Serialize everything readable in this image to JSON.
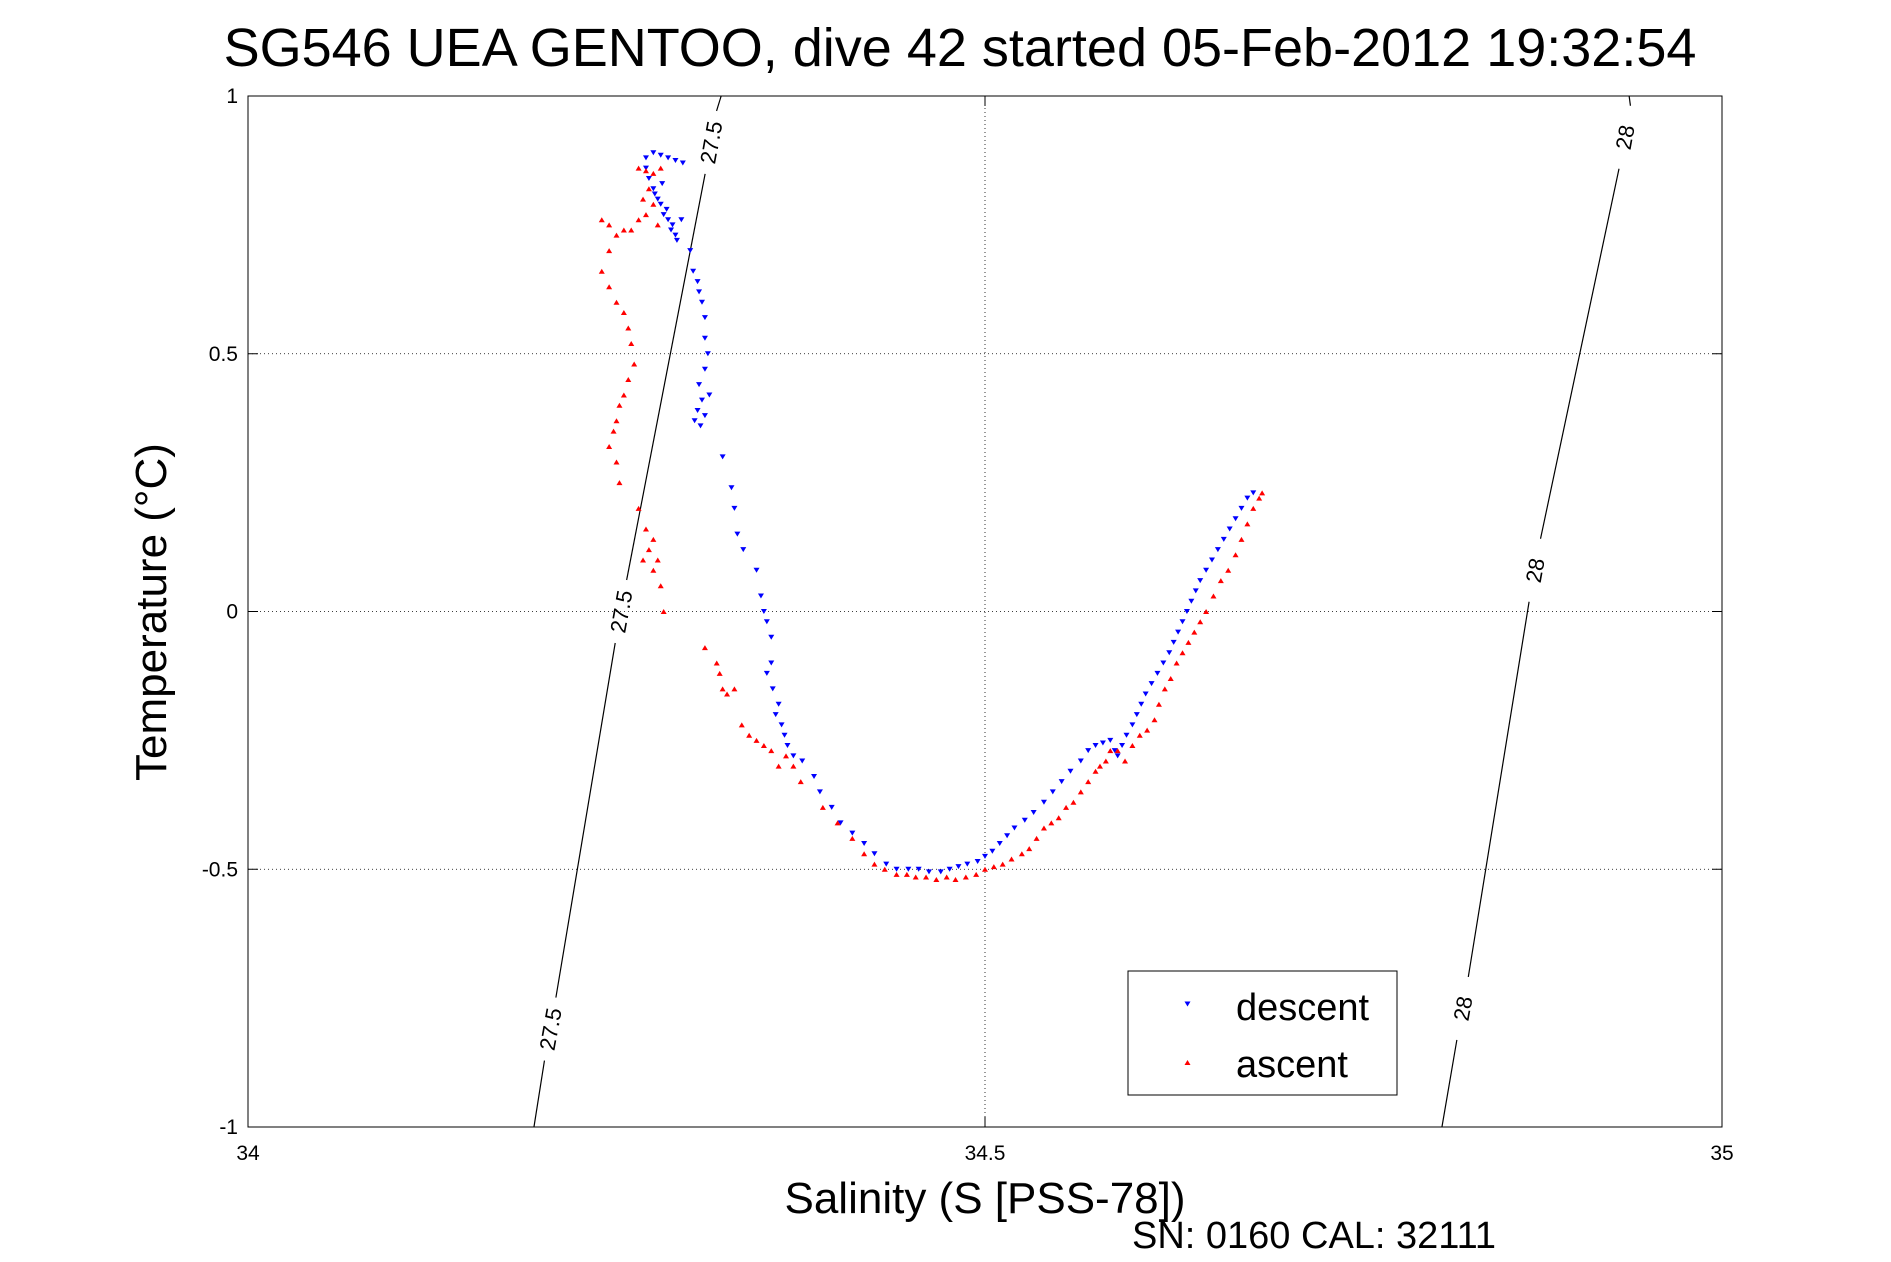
{
  "chart_data": {
    "type": "scatter",
    "title": "SG546 UEA GENTOO, dive 42 started 05-Feb-2012 19:32:54",
    "xlabel": "Salinity (S [PSS-78])",
    "ylabel": "Temperature (°C)",
    "xlim": [
      34,
      35
    ],
    "ylim": [
      -1,
      1
    ],
    "x_ticks": [
      {
        "value": 34,
        "label": "34"
      },
      {
        "value": 34.5,
        "label": "34.5"
      },
      {
        "value": 35,
        "label": "35"
      }
    ],
    "y_ticks": [
      {
        "value": -1,
        "label": "-1"
      },
      {
        "value": -0.5,
        "label": "-0.5"
      },
      {
        "value": 0,
        "label": "0"
      },
      {
        "value": 0.5,
        "label": "0.5"
      },
      {
        "value": 1,
        "label": "1"
      }
    ],
    "grid": true,
    "legend_position": "bottom-right",
    "footer": "SN: 0160  CAL: 32111",
    "density_contours": [
      {
        "label": "27.5",
        "points": [
          [
            34.194,
            -1.0
          ],
          [
            34.321,
            1.0
          ]
        ],
        "label_positions": [
          [
            34.205,
            -0.81
          ],
          [
            34.253,
            0.0
          ],
          [
            34.314,
            0.91
          ]
        ]
      },
      {
        "label": "28",
        "points": [
          [
            34.81,
            -1.0
          ],
          [
            34.937,
            1.0
          ]
        ],
        "label_positions": [
          [
            34.824,
            -0.77
          ],
          [
            34.873,
            0.08
          ],
          [
            34.934,
            0.92
          ]
        ]
      }
    ],
    "series": [
      {
        "name": "descent",
        "color": "#0000ff",
        "marker": "triangle-down",
        "points": [
          [
            34.27,
            0.88
          ],
          [
            34.275,
            0.89
          ],
          [
            34.28,
            0.885
          ],
          [
            34.285,
            0.88
          ],
          [
            34.29,
            0.875
          ],
          [
            34.295,
            0.87
          ],
          [
            34.27,
            0.86
          ],
          [
            34.272,
            0.84
          ],
          [
            34.275,
            0.82
          ],
          [
            34.278,
            0.8
          ],
          [
            34.28,
            0.79
          ],
          [
            34.282,
            0.77
          ],
          [
            34.285,
            0.76
          ],
          [
            34.287,
            0.74
          ],
          [
            34.29,
            0.73
          ],
          [
            34.276,
            0.81
          ],
          [
            34.281,
            0.83
          ],
          [
            34.284,
            0.78
          ],
          [
            34.288,
            0.75
          ],
          [
            34.291,
            0.72
          ],
          [
            34.294,
            0.76
          ],
          [
            34.3,
            0.7
          ],
          [
            34.302,
            0.66
          ],
          [
            34.305,
            0.64
          ],
          [
            34.306,
            0.62
          ],
          [
            34.308,
            0.6
          ],
          [
            34.31,
            0.57
          ],
          [
            34.31,
            0.53
          ],
          [
            34.312,
            0.5
          ],
          [
            34.31,
            0.47
          ],
          [
            34.306,
            0.44
          ],
          [
            34.308,
            0.41
          ],
          [
            34.305,
            0.39
          ],
          [
            34.303,
            0.37
          ],
          [
            34.307,
            0.36
          ],
          [
            34.31,
            0.38
          ],
          [
            34.313,
            0.42
          ],
          [
            34.322,
            0.3
          ],
          [
            34.328,
            0.24
          ],
          [
            34.33,
            0.2
          ],
          [
            34.332,
            0.15
          ],
          [
            34.336,
            0.12
          ],
          [
            34.345,
            0.08
          ],
          [
            34.348,
            0.03
          ],
          [
            34.35,
            0.0
          ],
          [
            34.352,
            -0.02
          ],
          [
            34.355,
            -0.05
          ],
          [
            34.355,
            -0.1
          ],
          [
            34.352,
            -0.12
          ],
          [
            34.356,
            -0.15
          ],
          [
            34.36,
            -0.18
          ],
          [
            34.358,
            -0.2
          ],
          [
            34.362,
            -0.22
          ],
          [
            34.364,
            -0.24
          ],
          [
            34.366,
            -0.26
          ],
          [
            34.37,
            -0.28
          ],
          [
            34.376,
            -0.29
          ],
          [
            34.384,
            -0.32
          ],
          [
            34.388,
            -0.35
          ],
          [
            34.396,
            -0.38
          ],
          [
            34.402,
            -0.41
          ],
          [
            34.41,
            -0.43
          ],
          [
            34.418,
            -0.45
          ],
          [
            34.425,
            -0.47
          ],
          [
            34.433,
            -0.49
          ],
          [
            34.44,
            -0.5
          ],
          [
            34.448,
            -0.5
          ],
          [
            34.455,
            -0.5
          ],
          [
            34.462,
            -0.505
          ],
          [
            34.47,
            -0.505
          ],
          [
            34.476,
            -0.5
          ],
          [
            34.482,
            -0.495
          ],
          [
            34.488,
            -0.49
          ],
          [
            34.495,
            -0.485
          ],
          [
            34.5,
            -0.475
          ],
          [
            34.505,
            -0.465
          ],
          [
            34.51,
            -0.45
          ],
          [
            34.515,
            -0.435
          ],
          [
            34.52,
            -0.42
          ],
          [
            34.527,
            -0.405
          ],
          [
            34.533,
            -0.39
          ],
          [
            34.54,
            -0.37
          ],
          [
            34.546,
            -0.35
          ],
          [
            34.552,
            -0.33
          ],
          [
            34.558,
            -0.31
          ],
          [
            34.565,
            -0.29
          ],
          [
            34.57,
            -0.27
          ],
          [
            34.575,
            -0.26
          ],
          [
            34.58,
            -0.255
          ],
          [
            34.585,
            -0.25
          ],
          [
            34.588,
            -0.27
          ],
          [
            34.59,
            -0.28
          ],
          [
            34.593,
            -0.26
          ],
          [
            34.596,
            -0.24
          ],
          [
            34.6,
            -0.22
          ],
          [
            34.603,
            -0.2
          ],
          [
            34.606,
            -0.18
          ],
          [
            34.609,
            -0.16
          ],
          [
            34.613,
            -0.14
          ],
          [
            34.617,
            -0.12
          ],
          [
            34.621,
            -0.1
          ],
          [
            34.625,
            -0.08
          ],
          [
            34.628,
            -0.06
          ],
          [
            34.631,
            -0.04
          ],
          [
            34.634,
            -0.02
          ],
          [
            34.637,
            0.0
          ],
          [
            34.64,
            0.02
          ],
          [
            34.643,
            0.04
          ],
          [
            34.646,
            0.06
          ],
          [
            34.65,
            0.08
          ],
          [
            34.654,
            0.1
          ],
          [
            34.658,
            0.12
          ],
          [
            34.662,
            0.14
          ],
          [
            34.666,
            0.16
          ],
          [
            34.67,
            0.18
          ],
          [
            34.674,
            0.2
          ],
          [
            34.678,
            0.22
          ],
          [
            34.682,
            0.23
          ]
        ]
      },
      {
        "name": "ascent",
        "color": "#ff0000",
        "marker": "triangle-up",
        "points": [
          [
            34.265,
            0.86
          ],
          [
            34.27,
            0.855
          ],
          [
            34.275,
            0.85
          ],
          [
            34.28,
            0.86
          ],
          [
            34.272,
            0.82
          ],
          [
            34.268,
            0.8
          ],
          [
            34.275,
            0.79
          ],
          [
            34.27,
            0.77
          ],
          [
            34.265,
            0.76
          ],
          [
            34.278,
            0.75
          ],
          [
            34.26,
            0.74
          ],
          [
            34.255,
            0.74
          ],
          [
            34.25,
            0.73
          ],
          [
            34.245,
            0.75
          ],
          [
            34.24,
            0.76
          ],
          [
            34.245,
            0.7
          ],
          [
            34.24,
            0.66
          ],
          [
            34.245,
            0.63
          ],
          [
            34.25,
            0.6
          ],
          [
            34.255,
            0.58
          ],
          [
            34.258,
            0.55
          ],
          [
            34.26,
            0.52
          ],
          [
            34.262,
            0.48
          ],
          [
            34.258,
            0.45
          ],
          [
            34.255,
            0.42
          ],
          [
            34.252,
            0.4
          ],
          [
            34.25,
            0.37
          ],
          [
            34.248,
            0.35
          ],
          [
            34.245,
            0.32
          ],
          [
            34.25,
            0.29
          ],
          [
            34.252,
            0.25
          ],
          [
            34.265,
            0.2
          ],
          [
            34.27,
            0.16
          ],
          [
            34.275,
            0.14
          ],
          [
            34.272,
            0.12
          ],
          [
            34.268,
            0.1
          ],
          [
            34.275,
            0.08
          ],
          [
            34.278,
            0.1
          ],
          [
            34.28,
            0.05
          ],
          [
            34.282,
            0.0
          ],
          [
            34.31,
            -0.07
          ],
          [
            34.318,
            -0.1
          ],
          [
            34.32,
            -0.12
          ],
          [
            34.322,
            -0.15
          ],
          [
            34.325,
            -0.16
          ],
          [
            34.33,
            -0.15
          ],
          [
            34.335,
            -0.22
          ],
          [
            34.34,
            -0.24
          ],
          [
            34.345,
            -0.25
          ],
          [
            34.35,
            -0.26
          ],
          [
            34.355,
            -0.27
          ],
          [
            34.36,
            -0.3
          ],
          [
            34.365,
            -0.28
          ],
          [
            34.37,
            -0.3
          ],
          [
            34.375,
            -0.33
          ],
          [
            34.39,
            -0.38
          ],
          [
            34.4,
            -0.41
          ],
          [
            34.41,
            -0.44
          ],
          [
            34.418,
            -0.47
          ],
          [
            34.425,
            -0.49
          ],
          [
            34.432,
            -0.5
          ],
          [
            34.44,
            -0.51
          ],
          [
            34.447,
            -0.51
          ],
          [
            34.453,
            -0.515
          ],
          [
            34.46,
            -0.515
          ],
          [
            34.467,
            -0.52
          ],
          [
            34.474,
            -0.515
          ],
          [
            34.48,
            -0.52
          ],
          [
            34.487,
            -0.515
          ],
          [
            34.494,
            -0.51
          ],
          [
            34.5,
            -0.5
          ],
          [
            34.506,
            -0.495
          ],
          [
            34.512,
            -0.49
          ],
          [
            34.518,
            -0.48
          ],
          [
            34.525,
            -0.47
          ],
          [
            34.53,
            -0.46
          ],
          [
            34.535,
            -0.44
          ],
          [
            34.54,
            -0.42
          ],
          [
            34.545,
            -0.41
          ],
          [
            34.55,
            -0.4
          ],
          [
            34.555,
            -0.38
          ],
          [
            34.56,
            -0.37
          ],
          [
            34.565,
            -0.35
          ],
          [
            34.57,
            -0.33
          ],
          [
            34.575,
            -0.31
          ],
          [
            34.578,
            -0.3
          ],
          [
            34.582,
            -0.29
          ],
          [
            34.585,
            -0.27
          ],
          [
            34.59,
            -0.27
          ],
          [
            34.595,
            -0.29
          ],
          [
            34.6,
            -0.26
          ],
          [
            34.605,
            -0.24
          ],
          [
            34.61,
            -0.23
          ],
          [
            34.615,
            -0.21
          ],
          [
            34.618,
            -0.18
          ],
          [
            34.622,
            -0.15
          ],
          [
            34.626,
            -0.13
          ],
          [
            34.63,
            -0.1
          ],
          [
            34.634,
            -0.08
          ],
          [
            34.638,
            -0.06
          ],
          [
            34.642,
            -0.04
          ],
          [
            34.646,
            -0.02
          ],
          [
            34.65,
            0.0
          ],
          [
            34.655,
            0.03
          ],
          [
            34.66,
            0.06
          ],
          [
            34.665,
            0.08
          ],
          [
            34.67,
            0.11
          ],
          [
            34.674,
            0.14
          ],
          [
            34.678,
            0.17
          ],
          [
            34.682,
            0.2
          ],
          [
            34.686,
            0.22
          ],
          [
            34.688,
            0.23
          ]
        ]
      }
    ]
  }
}
